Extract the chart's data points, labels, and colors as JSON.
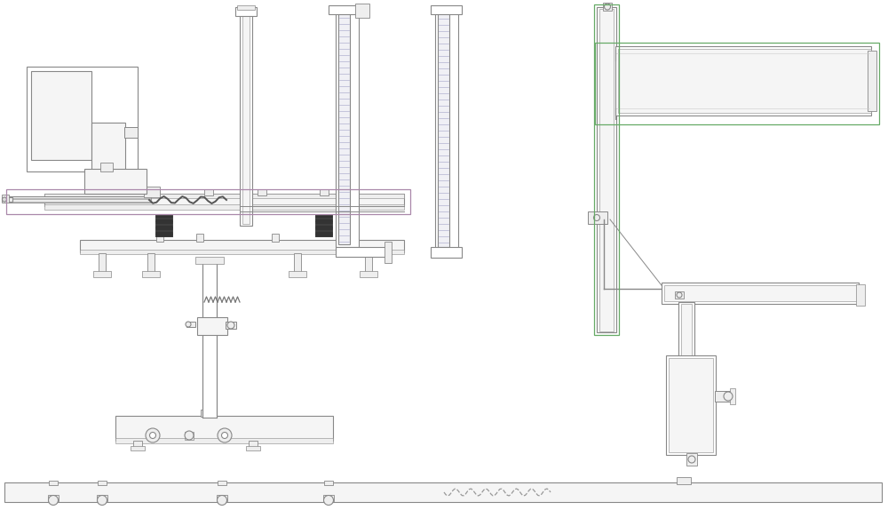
{
  "bg": "#ffffff",
  "lc": "#888888",
  "lc2": "#aaaaaa",
  "gc": "#66aa66",
  "pc": "#aa88aa",
  "fig_w": 10.0,
  "fig_h": 5.74,
  "dpi": 100
}
